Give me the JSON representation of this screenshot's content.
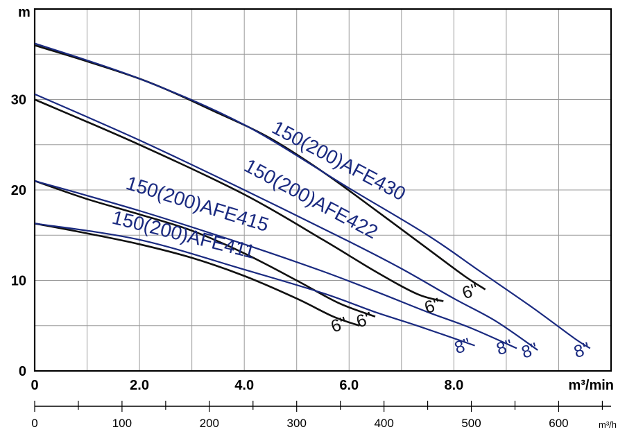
{
  "chart_data": {
    "type": "line",
    "ylabel": "m",
    "xlabel": "m³/min",
    "secondary_xlabel": "m³/h",
    "xlim": [
      0,
      11
    ],
    "ylim": [
      0,
      40
    ],
    "grid": true,
    "x_ticks": [
      {
        "value": 0,
        "label": "0"
      },
      {
        "value": 2,
        "label": "2.0"
      },
      {
        "value": 4,
        "label": "4.0"
      },
      {
        "value": 6,
        "label": "6.0"
      },
      {
        "value": 8,
        "label": "8.0"
      }
    ],
    "y_ticks": [
      {
        "value": 0,
        "label": "0"
      },
      {
        "value": 10,
        "label": "10"
      },
      {
        "value": 20,
        "label": "20"
      },
      {
        "value": 30,
        "label": "30"
      }
    ],
    "secondary_x_ticks": [
      {
        "value": 0,
        "label": "0"
      },
      {
        "value": 100,
        "label": "100"
      },
      {
        "value": 200,
        "label": "200"
      },
      {
        "value": 300,
        "label": "300"
      },
      {
        "value": 400,
        "label": "400"
      },
      {
        "value": 500,
        "label": "500"
      },
      {
        "value": 600,
        "label": "600"
      }
    ],
    "secondary_xlim": [
      0,
      660
    ],
    "series": [
      {
        "name": "150(200)AFE430",
        "curves": [
          {
            "size": "6\"",
            "color": "#111111",
            "x": [
              0,
              2,
              3.5,
              4.5,
              5.5,
              6.5,
              7.5,
              8.2,
              8.6
            ],
            "y": [
              36,
              32.3,
              28.5,
              25.7,
              22,
              17.8,
              13.5,
              10.5,
              9
            ]
          },
          {
            "size": "8\"",
            "color": "#1a2a80",
            "x": [
              0,
              2,
              4,
              6,
              7.5,
              8.5,
              9.5,
              10.3,
              10.6
            ],
            "y": [
              36.2,
              32.3,
              27.2,
              20.2,
              15,
              11,
              7,
              3.6,
              2.5
            ]
          }
        ]
      },
      {
        "name": "150(200)AFE422",
        "curves": [
          {
            "size": "6\"",
            "color": "#111111",
            "x": [
              0,
              2,
              4,
              5.5,
              6.5,
              7.3,
              7.8
            ],
            "y": [
              30,
              25,
              19.5,
              14.5,
              11,
              8.5,
              7.7
            ]
          },
          {
            "size": "8\"",
            "color": "#1a2a80",
            "x": [
              0,
              2,
              4,
              6,
              7,
              8,
              8.8,
              9.6
            ],
            "y": [
              30.6,
              25.5,
              20,
              14.3,
              11.3,
              8,
              5.5,
              2.3
            ]
          }
        ]
      },
      {
        "name": "150(200)AFE415",
        "curves": [
          {
            "size": "6\"",
            "color": "#111111",
            "x": [
              0,
              1,
              2,
              3,
              4,
              5,
              5.8,
              6.5
            ],
            "y": [
              21,
              19,
              17.3,
              15.5,
              13,
              10,
              7.5,
              6
            ]
          },
          {
            "size": "8\"",
            "color": "#1a2a80",
            "x": [
              0,
              2,
              4,
              5.5,
              6.5,
              7.5,
              8.3,
              9.2
            ],
            "y": [
              21,
              17.7,
              14,
              11,
              8.8,
              6.5,
              4.8,
              2.5
            ]
          }
        ]
      },
      {
        "name": "150(200)AFE411",
        "curves": [
          {
            "size": "6\"",
            "color": "#111111",
            "x": [
              0,
              1,
              2,
              3,
              4,
              5,
              5.7,
              6.2
            ],
            "y": [
              16.3,
              15.2,
              14,
              12.5,
              10.5,
              8,
              6,
              5
            ]
          },
          {
            "size": "8\"",
            "color": "#1a2a80",
            "x": [
              0,
              2,
              4,
              5.5,
              6.5,
              7.3,
              8.4
            ],
            "y": [
              16.3,
              14.5,
              11.2,
              8.6,
              6.5,
              5,
              2.8
            ]
          }
        ]
      }
    ]
  }
}
